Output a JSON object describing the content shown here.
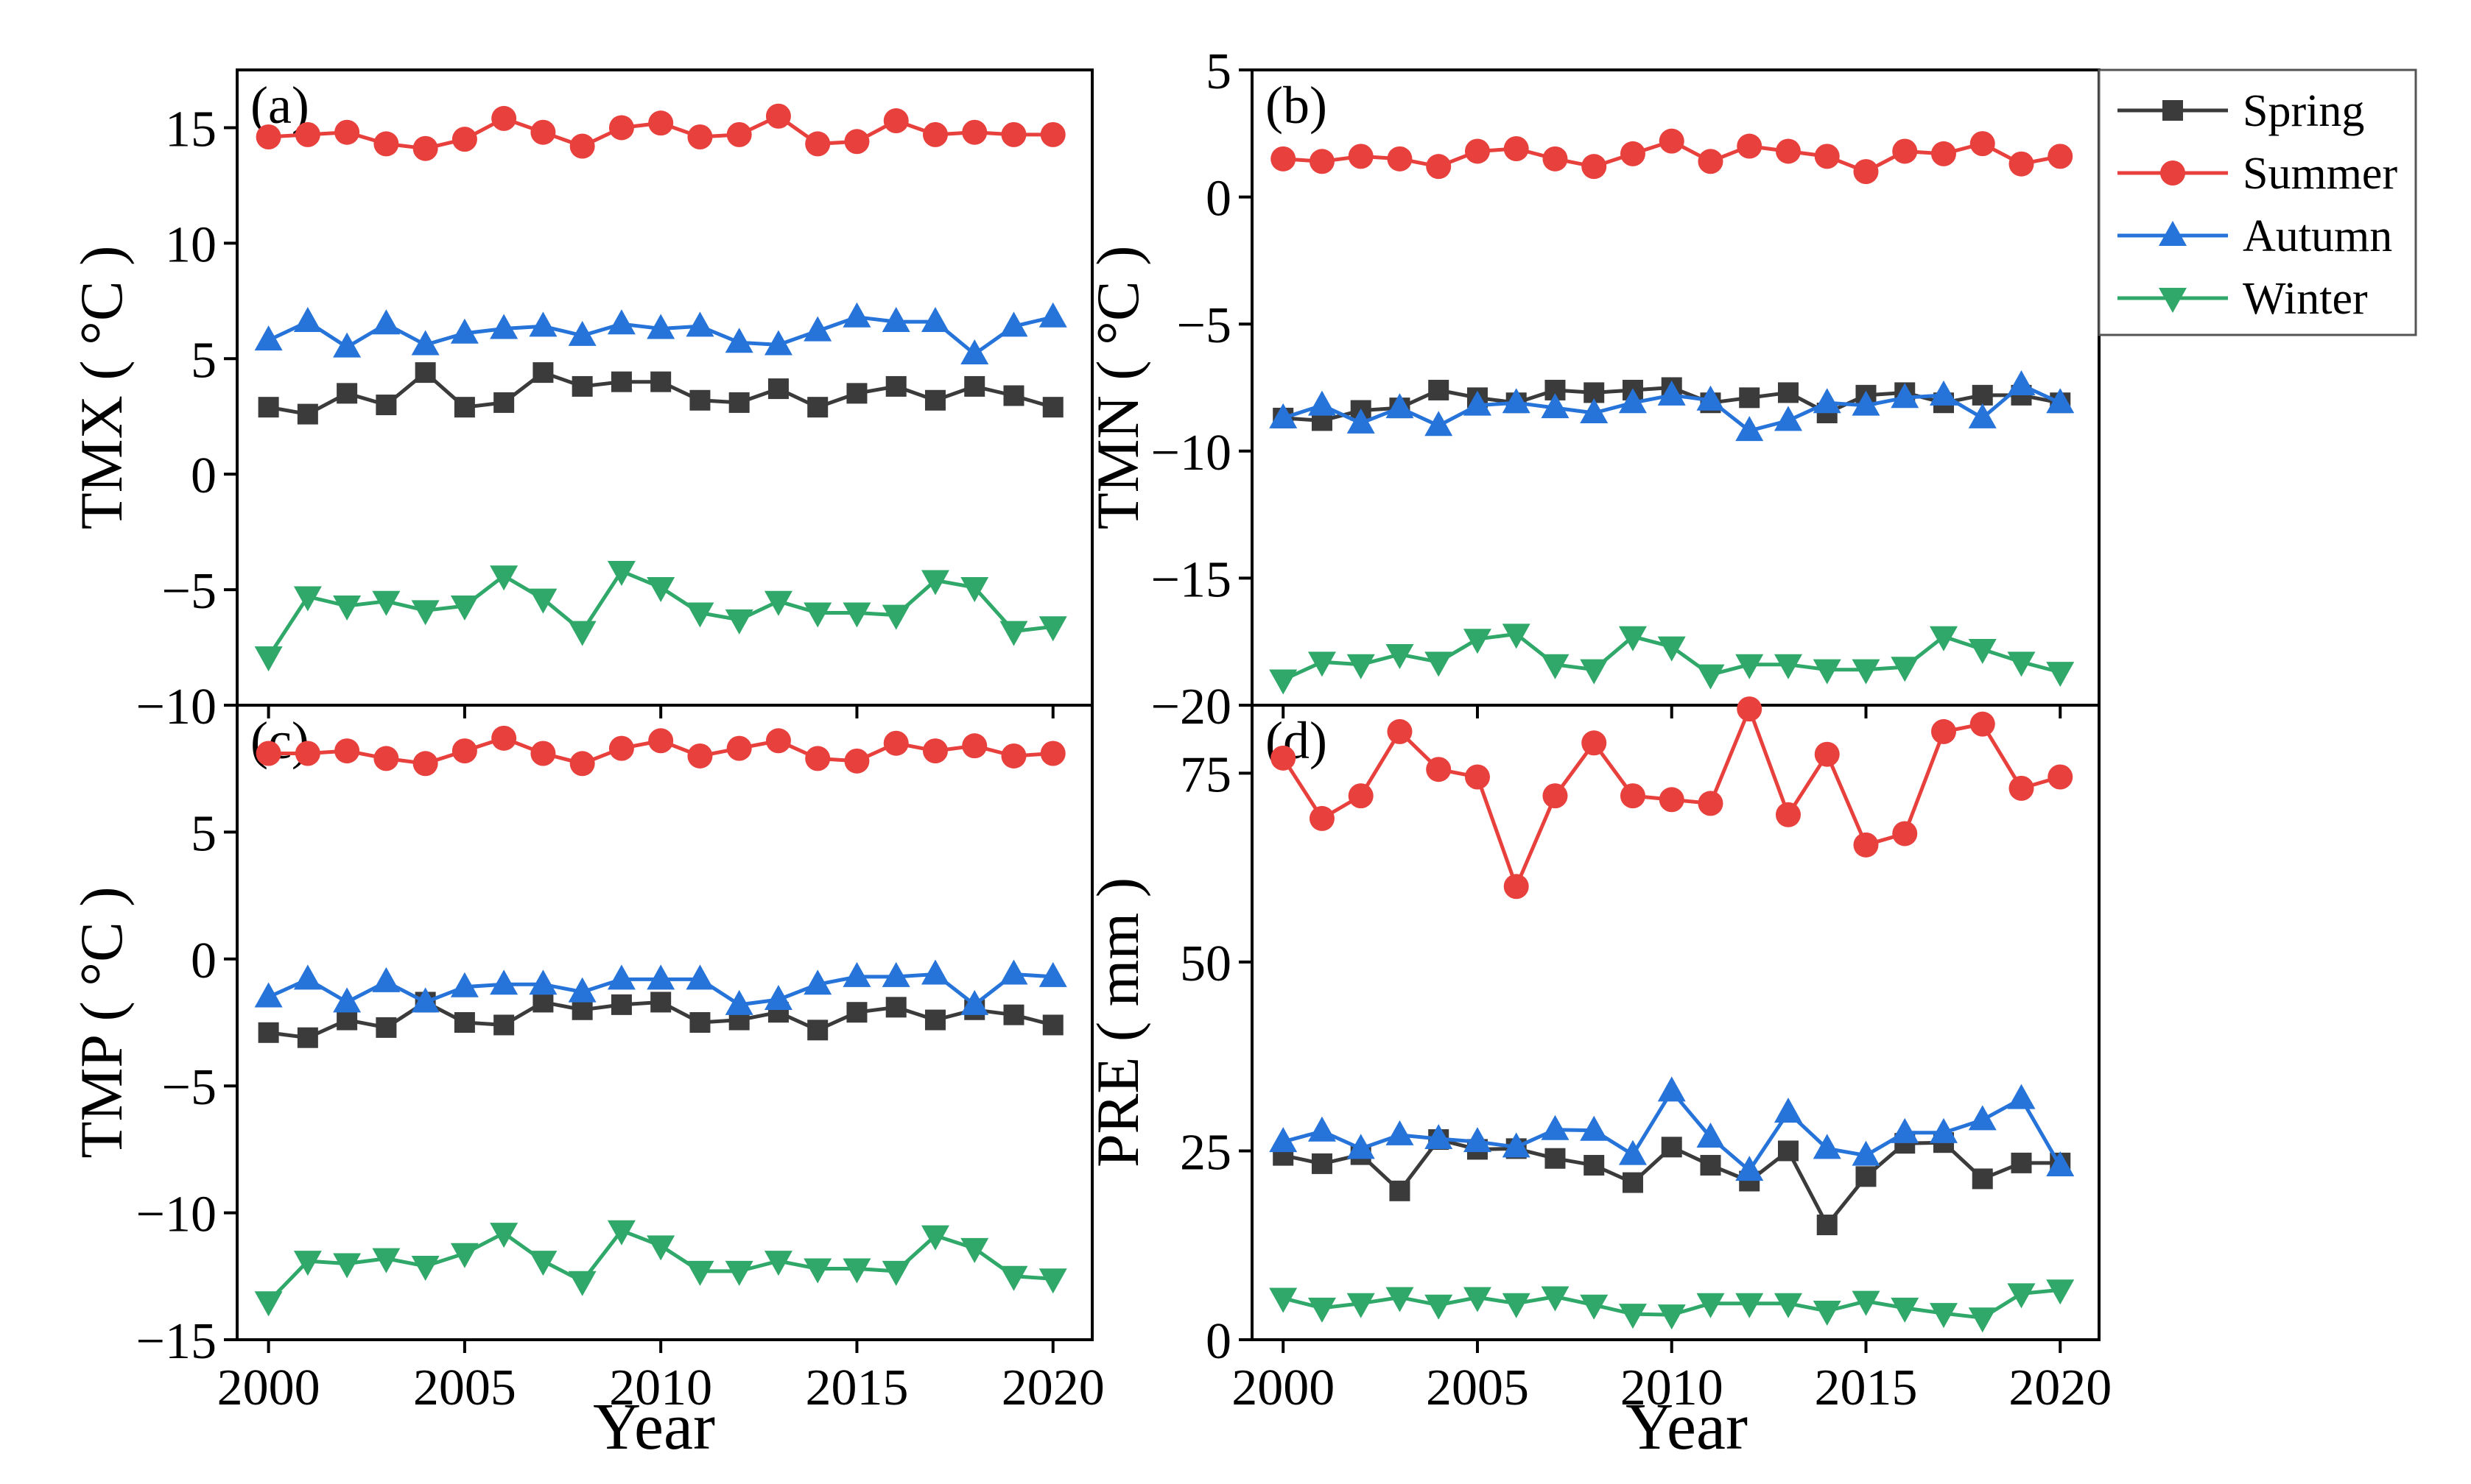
{
  "figure": {
    "xlabel": "Year",
    "legend": {
      "placement": "top-right",
      "entries": [
        {
          "name": "Spring",
          "color": "#3b3b3b",
          "marker": "square"
        },
        {
          "name": "Summer",
          "color": "#e8403c",
          "marker": "circle"
        },
        {
          "name": "Autumn",
          "color": "#2673d9",
          "marker": "triangle-up"
        },
        {
          "name": "Winter",
          "color": "#2fa869",
          "marker": "triangle-down"
        }
      ]
    }
  },
  "chart_data": [
    {
      "id": "a",
      "type": "line",
      "panel_label": "(a)",
      "ylabel": "TMX ( °C )",
      "xlim": [
        1999.2,
        2021.0
      ],
      "ylim": [
        -10,
        17.5
      ],
      "xticks": [
        2000,
        2005,
        2010,
        2015,
        2020
      ],
      "xtick_labels": [
        "2000",
        "2005",
        "2010",
        "2015",
        "2020"
      ],
      "yticks": [
        -10,
        -5,
        0,
        5,
        10,
        15
      ],
      "ytick_labels": [
        "−10",
        "−5",
        "0",
        "5",
        "10",
        "15"
      ],
      "show_xtick_labels": false,
      "x": [
        2000,
        2001,
        2002,
        2003,
        2004,
        2005,
        2006,
        2007,
        2008,
        2009,
        2010,
        2011,
        2012,
        2013,
        2014,
        2015,
        2016,
        2017,
        2018,
        2019,
        2020
      ],
      "series": [
        {
          "name": "Spring",
          "values": [
            2.9,
            2.6,
            3.5,
            3.0,
            4.4,
            2.9,
            3.1,
            4.4,
            3.8,
            4.0,
            4.0,
            3.2,
            3.1,
            3.7,
            2.9,
            3.5,
            3.8,
            3.2,
            3.8,
            3.4,
            2.9
          ]
        },
        {
          "name": "Summer",
          "values": [
            14.6,
            14.7,
            14.8,
            14.3,
            14.1,
            14.5,
            15.4,
            14.8,
            14.2,
            15.0,
            15.2,
            14.6,
            14.7,
            15.5,
            14.3,
            14.4,
            15.3,
            14.7,
            14.8,
            14.7,
            14.7
          ]
        },
        {
          "name": "Autumn",
          "values": [
            5.8,
            6.6,
            5.5,
            6.5,
            5.6,
            6.1,
            6.3,
            6.4,
            6.0,
            6.5,
            6.3,
            6.4,
            5.7,
            5.6,
            6.2,
            6.8,
            6.6,
            6.6,
            5.2,
            6.4,
            6.8
          ]
        },
        {
          "name": "Winter",
          "values": [
            -7.9,
            -5.3,
            -5.7,
            -5.5,
            -5.9,
            -5.7,
            -4.4,
            -5.4,
            -6.8,
            -4.2,
            -4.9,
            -6.0,
            -6.3,
            -5.5,
            -6.0,
            -6.0,
            -6.1,
            -4.6,
            -4.9,
            -6.8,
            -6.6
          ]
        }
      ]
    },
    {
      "id": "b",
      "type": "line",
      "panel_label": "(b)",
      "ylabel": "TMN ( °C )",
      "xlim": [
        1999.2,
        2021.0
      ],
      "ylim": [
        -20,
        5
      ],
      "xticks": [
        2000,
        2005,
        2010,
        2015,
        2020
      ],
      "xtick_labels": [
        "2000",
        "2005",
        "2010",
        "2015",
        "2020"
      ],
      "yticks": [
        -20,
        -15,
        -10,
        -5,
        0,
        5
      ],
      "ytick_labels": [
        "−20",
        "−15",
        "−10",
        "−5",
        "0",
        "5"
      ],
      "show_xtick_labels": false,
      "x": [
        2000,
        2001,
        2002,
        2003,
        2004,
        2005,
        2006,
        2007,
        2008,
        2009,
        2010,
        2011,
        2012,
        2013,
        2014,
        2015,
        2016,
        2017,
        2018,
        2019,
        2020
      ],
      "series": [
        {
          "name": "Spring",
          "values": [
            -8.7,
            -8.8,
            -8.4,
            -8.3,
            -7.6,
            -7.9,
            -8.1,
            -7.6,
            -7.7,
            -7.6,
            -7.5,
            -8.1,
            -7.9,
            -7.7,
            -8.5,
            -7.8,
            -7.7,
            -8.1,
            -7.8,
            -7.8,
            -8.1
          ]
        },
        {
          "name": "Summer",
          "values": [
            1.5,
            1.4,
            1.6,
            1.5,
            1.2,
            1.8,
            1.9,
            1.5,
            1.2,
            1.7,
            2.2,
            1.4,
            2.0,
            1.8,
            1.6,
            1.0,
            1.8,
            1.7,
            2.1,
            1.3,
            1.6
          ]
        },
        {
          "name": "Autumn",
          "values": [
            -8.7,
            -8.2,
            -8.9,
            -8.3,
            -9.0,
            -8.2,
            -8.1,
            -8.3,
            -8.5,
            -8.1,
            -7.8,
            -8.0,
            -9.2,
            -8.8,
            -8.1,
            -8.2,
            -7.9,
            -7.8,
            -8.7,
            -7.4,
            -8.1
          ]
        },
        {
          "name": "Winter",
          "values": [
            -19.0,
            -18.3,
            -18.4,
            -18.0,
            -18.3,
            -17.4,
            -17.2,
            -18.4,
            -18.6,
            -17.3,
            -17.7,
            -18.8,
            -18.4,
            -18.4,
            -18.6,
            -18.6,
            -18.5,
            -17.3,
            -17.8,
            -18.3,
            -18.7
          ]
        }
      ]
    },
    {
      "id": "c",
      "type": "line",
      "panel_label": "(c)",
      "ylabel": "TMP ( °C )",
      "xlim": [
        1999.2,
        2021.0
      ],
      "ylim": [
        -15,
        10
      ],
      "xticks": [
        2000,
        2005,
        2010,
        2015,
        2020
      ],
      "xtick_labels": [
        "2000",
        "2005",
        "2010",
        "2015",
        "2020"
      ],
      "yticks": [
        -15,
        -10,
        -5,
        0,
        5
      ],
      "ytick_labels": [
        "−15",
        "−10",
        "−5",
        "0",
        "5"
      ],
      "show_xtick_labels": true,
      "x": [
        2000,
        2001,
        2002,
        2003,
        2004,
        2005,
        2006,
        2007,
        2008,
        2009,
        2010,
        2011,
        2012,
        2013,
        2014,
        2015,
        2016,
        2017,
        2018,
        2019,
        2020
      ],
      "series": [
        {
          "name": "Spring",
          "values": [
            -2.9,
            -3.1,
            -2.4,
            -2.7,
            -1.7,
            -2.5,
            -2.6,
            -1.7,
            -2.0,
            -1.8,
            -1.7,
            -2.5,
            -2.4,
            -2.1,
            -2.8,
            -2.1,
            -1.9,
            -2.4,
            -2.0,
            -2.2,
            -2.6
          ]
        },
        {
          "name": "Summer",
          "values": [
            8.1,
            8.1,
            8.2,
            7.9,
            7.7,
            8.2,
            8.7,
            8.1,
            7.7,
            8.3,
            8.6,
            8.0,
            8.3,
            8.6,
            7.9,
            7.8,
            8.5,
            8.2,
            8.4,
            8.0,
            8.1
          ]
        },
        {
          "name": "Autumn",
          "values": [
            -1.5,
            -0.8,
            -1.7,
            -0.9,
            -1.7,
            -1.1,
            -1.0,
            -1.0,
            -1.3,
            -0.8,
            -0.8,
            -0.8,
            -1.8,
            -1.6,
            -1.0,
            -0.7,
            -0.7,
            -0.6,
            -1.8,
            -0.6,
            -0.7
          ]
        },
        {
          "name": "Winter",
          "values": [
            -13.5,
            -11.9,
            -12.0,
            -11.8,
            -12.1,
            -11.6,
            -10.8,
            -11.9,
            -12.7,
            -10.7,
            -11.3,
            -12.3,
            -12.3,
            -11.9,
            -12.2,
            -12.2,
            -12.3,
            -10.9,
            -11.4,
            -12.5,
            -12.6
          ]
        }
      ]
    },
    {
      "id": "d",
      "type": "line",
      "panel_label": "(d)",
      "ylabel": "PRE ( mm )",
      "xlim": [
        1999.2,
        2021.0
      ],
      "ylim": [
        0,
        84
      ],
      "xticks": [
        2000,
        2005,
        2010,
        2015,
        2020
      ],
      "xtick_labels": [
        "2000",
        "2005",
        "2010",
        "2015",
        "2020"
      ],
      "yticks": [
        0,
        25,
        50,
        75
      ],
      "ytick_labels": [
        "0",
        "25",
        "50",
        "75"
      ],
      "show_xtick_labels": true,
      "x": [
        2000,
        2001,
        2002,
        2003,
        2004,
        2005,
        2006,
        2007,
        2008,
        2009,
        2010,
        2011,
        2012,
        2013,
        2014,
        2015,
        2016,
        2017,
        2018,
        2019,
        2020
      ],
      "series": [
        {
          "name": "Spring",
          "values": [
            24.4,
            23.3,
            24.5,
            19.7,
            26.5,
            25.2,
            25.3,
            24.0,
            23.1,
            20.8,
            25.5,
            23.1,
            21.0,
            25.0,
            15.2,
            21.6,
            26.0,
            26.1,
            21.3,
            23.4,
            23.4
          ]
        },
        {
          "name": "Summer",
          "values": [
            77.0,
            69.0,
            72.0,
            80.5,
            75.5,
            74.5,
            60.0,
            72.0,
            79.0,
            72.0,
            71.5,
            71.0,
            83.5,
            69.5,
            77.5,
            65.5,
            67.0,
            80.5,
            81.5,
            73.0,
            74.5
          ]
        },
        {
          "name": "Autumn",
          "values": [
            26.2,
            27.6,
            25.3,
            27.1,
            26.6,
            26.2,
            25.5,
            27.8,
            27.7,
            24.5,
            32.9,
            26.8,
            22.4,
            30.1,
            25.3,
            24.4,
            27.4,
            27.4,
            29.1,
            31.9,
            23.0
          ]
        },
        {
          "name": "Winter",
          "values": [
            5.5,
            4.2,
            4.8,
            5.6,
            4.6,
            5.6,
            4.8,
            5.7,
            4.6,
            3.4,
            3.3,
            4.8,
            4.8,
            4.8,
            3.8,
            5.1,
            4.2,
            3.5,
            2.9,
            6.1,
            6.6
          ]
        }
      ]
    }
  ]
}
